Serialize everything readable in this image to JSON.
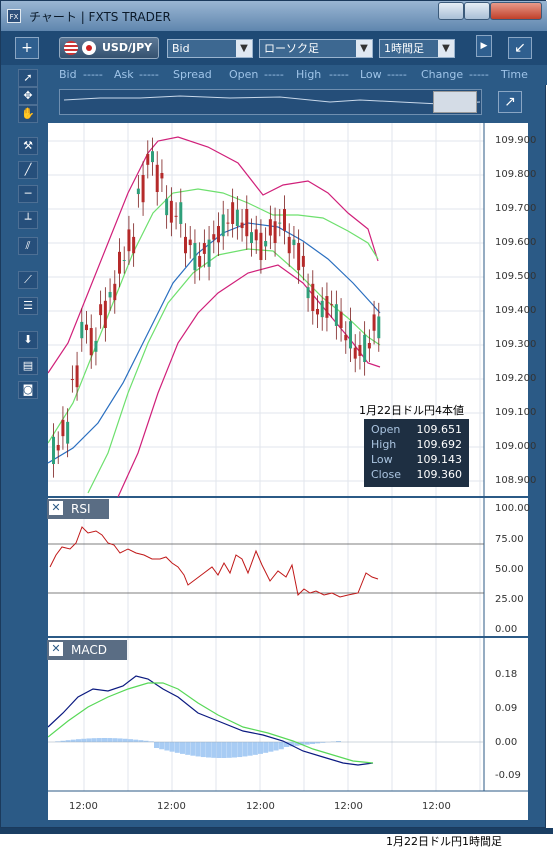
{
  "window": {
    "title": "チャート | FXTS TRADER",
    "app_icon": "FX"
  },
  "toolbar": {
    "add_label": "+",
    "symbol": "USD/JPY",
    "price_type": "Bid",
    "chart_type": "ローソク足",
    "timeframe": "1時間足"
  },
  "quote_bar": {
    "bid_label": "Bid",
    "bid_value": "-----",
    "ask_label": "Ask",
    "ask_value": "-----",
    "spread_label": "Spread",
    "open_label": "Open",
    "open_value": "-----",
    "high_label": "High",
    "high_value": "-----",
    "low_label": "Low",
    "low_value": "-----",
    "change_label": "Change",
    "change_value": "-----",
    "time_label": "Time"
  },
  "price_axis": [
    "109.900",
    "109.800",
    "109.700",
    "109.600",
    "109.500",
    "109.400",
    "109.300",
    "109.200",
    "109.100",
    "109.000",
    "108.900"
  ],
  "rsi": {
    "title": "RSI",
    "axis": [
      "100.00",
      "75.00",
      "50.00",
      "25.00",
      "0.00"
    ]
  },
  "macd": {
    "title": "MACD",
    "axis": [
      "0.18",
      "0.09",
      "0.00",
      "-0.09"
    ]
  },
  "time_axis": [
    "12:00",
    "12:00",
    "12:00",
    "12:00",
    "12:00"
  ],
  "tooltip": {
    "title": "1月22日ドル円4本値",
    "open_label": "Open",
    "open_value": "109.651",
    "high_label": "High",
    "high_value": "109.692",
    "low_label": "Low",
    "low_value": "109.143",
    "close_label": "Close",
    "close_value": "109.360"
  },
  "caption": "1月22日ドル円1時間足",
  "colors": {
    "frame": "#2b5a86",
    "candle": "#b52a2a",
    "ma_blue": "#2a6fc0",
    "band_magenta": "#d0207a",
    "band_green": "#6ee06e",
    "rsi_line": "#c01818",
    "macd_line": "#0b1a80",
    "signal_line": "#58d858",
    "hist": "#a8ccf4"
  },
  "chart_data": {
    "type": "candlestick",
    "series_price": [
      109.0,
      109.05,
      109.2,
      109.35,
      109.3,
      109.4,
      109.45,
      109.55,
      109.6,
      109.75,
      109.85,
      109.8,
      109.7,
      109.68,
      109.6,
      109.55,
      109.58,
      109.62,
      109.66,
      109.68,
      109.65,
      109.62,
      109.6,
      109.64,
      109.66,
      109.6,
      109.55,
      109.45,
      109.4,
      109.42,
      109.38,
      109.32,
      109.28,
      109.3,
      109.36
    ]
  }
}
